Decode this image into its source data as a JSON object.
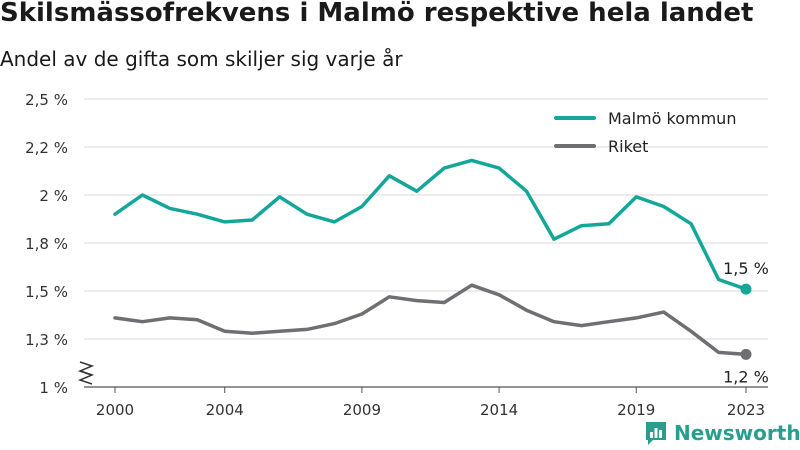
{
  "title": "Skilsmässofrekvens i Malmö respektive hela landet",
  "subtitle": "Andel av de gifta som skiljer sig varje år",
  "brand": "Newsworthy",
  "colors": {
    "malmo": "#14a699",
    "riket": "#6e6e73",
    "grid": "#d9d9d9",
    "axis": "#555555",
    "brand": "#2a9d8f"
  },
  "chart_data": {
    "type": "line",
    "title": "Skilsmässofrekvens i Malmö respektive hela landet",
    "subtitle": "Andel av de gifta som skiljer sig varje år",
    "xlabel": "",
    "ylabel": "",
    "x": [
      2000,
      2001,
      2002,
      2003,
      2004,
      2005,
      2006,
      2007,
      2008,
      2009,
      2010,
      2011,
      2012,
      2013,
      2014,
      2015,
      2016,
      2017,
      2018,
      2019,
      2020,
      2021,
      2022,
      2023
    ],
    "x_ticks": [
      "2000",
      "2004",
      "2009",
      "2014",
      "2019",
      "2023"
    ],
    "x_tick_values": [
      2000,
      2004,
      2009,
      2014,
      2019,
      2023
    ],
    "y_ticks": [
      "1 %",
      "1,3 %",
      "1,5 %",
      "1,8 %",
      "2 %",
      "2,2 %",
      "2,5 %"
    ],
    "y_tick_values": [
      1.0,
      1.25,
      1.5,
      1.75,
      2.0,
      2.25,
      2.5
    ],
    "ylim": [
      1.0,
      2.5
    ],
    "y_axis_break": true,
    "grid": true,
    "legend_position": "top-right",
    "series": [
      {
        "name": "Malmö kommun",
        "color": "#14a699",
        "end_label": "1,5 %",
        "values": [
          1.9,
          2.0,
          1.93,
          1.9,
          1.86,
          1.87,
          1.99,
          1.9,
          1.86,
          1.94,
          2.1,
          2.02,
          2.14,
          2.18,
          2.14,
          2.02,
          1.77,
          1.84,
          1.85,
          1.99,
          1.94,
          1.85,
          1.56,
          1.51
        ]
      },
      {
        "name": "Riket",
        "color": "#6e6e73",
        "end_label": "1,2 %",
        "values": [
          1.36,
          1.34,
          1.36,
          1.35,
          1.29,
          1.28,
          1.29,
          1.3,
          1.33,
          1.38,
          1.47,
          1.45,
          1.44,
          1.53,
          1.48,
          1.4,
          1.34,
          1.32,
          1.34,
          1.36,
          1.39,
          1.29,
          1.18,
          1.17
        ]
      }
    ]
  }
}
